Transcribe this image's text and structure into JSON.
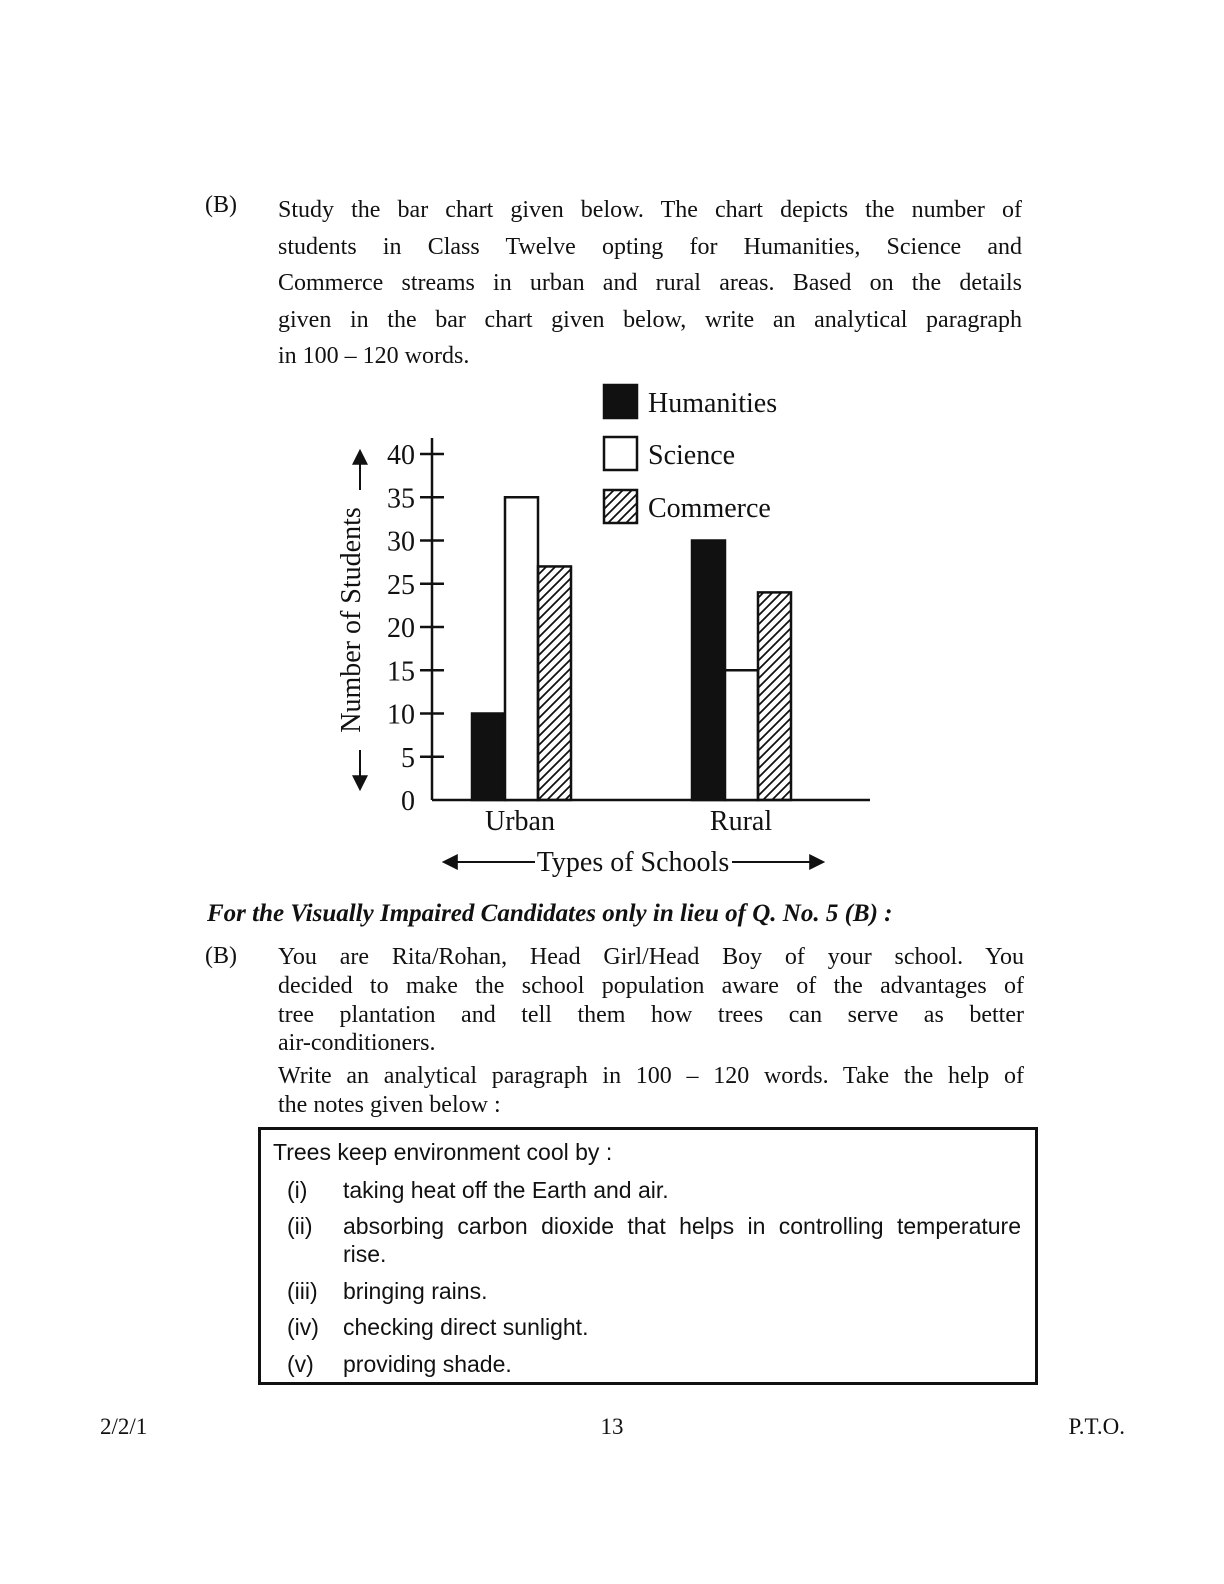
{
  "question_b": {
    "label": "(B)",
    "lines": [
      "Study the bar chart given below. The chart depicts the number of",
      "students in Class Twelve opting for Humanities, Science and",
      "Commerce streams in urban and rural areas. Based on the details",
      "given in the bar chart given below, write an analytical paragraph",
      "in 100 – 120 words."
    ]
  },
  "chart_data": {
    "type": "bar",
    "title": "",
    "categories": [
      "Urban",
      "Rural"
    ],
    "series": [
      {
        "name": "Humanities",
        "fill": "black",
        "values": [
          10,
          30
        ]
      },
      {
        "name": "Science",
        "fill": "white",
        "values": [
          35,
          15
        ]
      },
      {
        "name": "Commerce",
        "fill": "hatch",
        "values": [
          27,
          24
        ]
      }
    ],
    "xlabel": "Types of Schools",
    "ylabel": "Number of Students",
    "ylim": [
      0,
      40
    ],
    "ytick_step": 5,
    "grid": false,
    "legend_position": "top-right",
    "ink_color": "#111111"
  },
  "vi_section": {
    "heading": "For the Visually Impaired Candidates only in lieu of Q. No. 5 (B) :",
    "label": "(B)",
    "lines": [
      "You are Rita/Rohan, Head Girl/Head Boy of your school. You",
      "decided to make the school population aware of the advantages of",
      "tree plantation and tell them how trees can serve as better",
      "air-conditioners."
    ],
    "lines2": [
      "Write an analytical paragraph in 100 – 120 words. Take the help of",
      "the notes given below :"
    ]
  },
  "notes": {
    "title": "Trees keep environment cool by :",
    "items": [
      {
        "num": "(i)",
        "text": "taking heat off the Earth and air."
      },
      {
        "num": "(ii)",
        "text": "absorbing carbon dioxide that helps in controlling temperature rise."
      },
      {
        "num": "(iii)",
        "text": "bringing rains."
      },
      {
        "num": "(iv)",
        "text": "checking direct sunlight."
      },
      {
        "num": "(v)",
        "text": "providing shade."
      }
    ]
  },
  "footer": {
    "left": "2/2/1",
    "page": "13",
    "right": "P.T.O."
  }
}
